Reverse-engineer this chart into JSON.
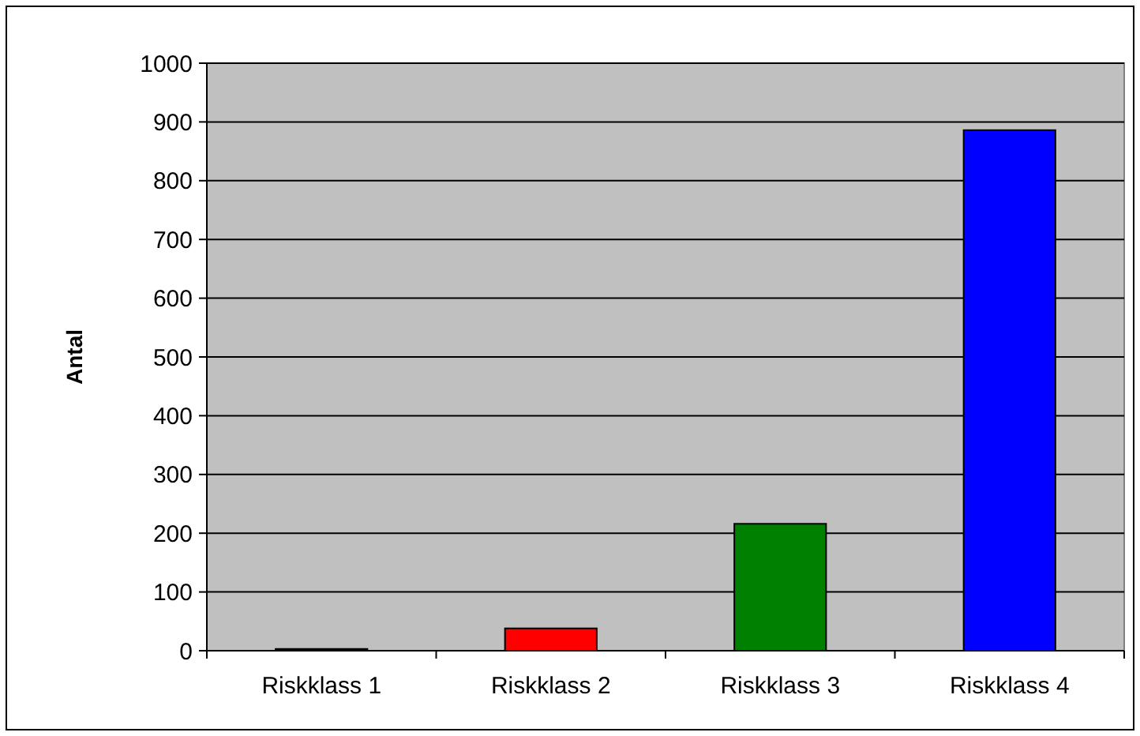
{
  "chart_data": {
    "type": "bar",
    "ylabel": "Antal",
    "categories": [
      "Riskklass 1",
      "Riskklass 2",
      "Riskklass 3",
      "Riskklass 4"
    ],
    "values": [
      3,
      38,
      216,
      886
    ],
    "colors": [
      "#000000",
      "#ff0000",
      "#008000",
      "#0000ff"
    ],
    "ylim": [
      0,
      1000
    ],
    "yticks": [
      0,
      100,
      200,
      300,
      400,
      500,
      600,
      700,
      800,
      900,
      1000
    ],
    "grid": "y"
  }
}
